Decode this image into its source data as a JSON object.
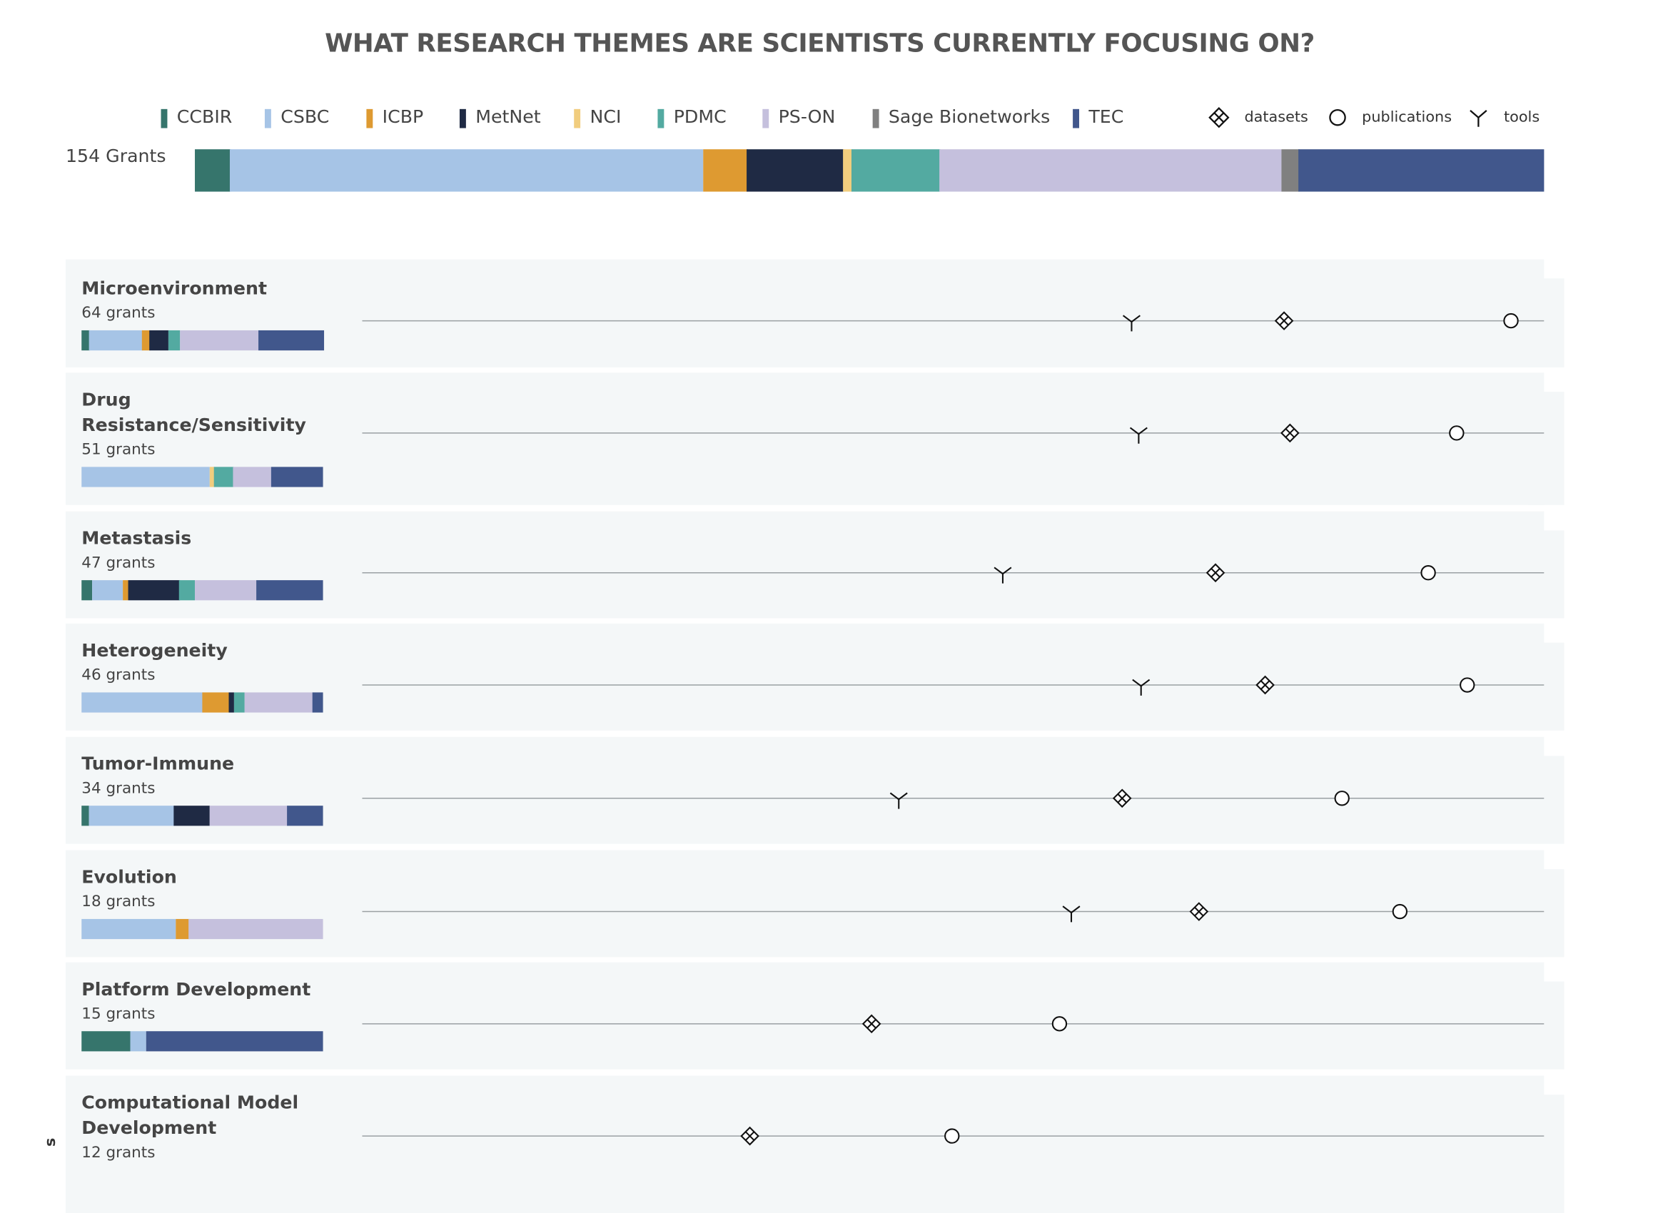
{
  "title": "WHAT RESEARCH THEMES ARE SCIENTISTS CURRENTLY FOCUSING ON?",
  "legend": [
    {
      "key": "CCBIR",
      "label": "CCBIR",
      "color": "#36756c"
    },
    {
      "key": "CSBC",
      "label": "CSBC",
      "color": "#a6c4e6"
    },
    {
      "key": "ICBP",
      "label": "ICBP",
      "color": "#de9a31"
    },
    {
      "key": "MetNet",
      "label": "MetNet",
      "color": "#1f2a44"
    },
    {
      "key": "NCI",
      "label": "NCI",
      "color": "#f1cd7e"
    },
    {
      "key": "PDMC",
      "label": "PDMC",
      "color": "#53aaa1"
    },
    {
      "key": "PS-ON",
      "label": "PS-ON",
      "color": "#c5c0dd"
    },
    {
      "key": "Sage Bionetworks",
      "label": "Sage Bionetworks",
      "color": "#808080"
    },
    {
      "key": "TEC",
      "label": "TEC",
      "color": "#41578c"
    }
  ],
  "marker_legend": [
    {
      "key": "datasets",
      "label": "datasets",
      "icon": "diamond-icon"
    },
    {
      "key": "publications",
      "label": "publications",
      "icon": "circle-icon"
    },
    {
      "key": "tools",
      "label": "tools",
      "icon": "tools-y-icon"
    }
  ],
  "chart_data": {
    "type": "bar",
    "total": {
      "label": "154 Grants",
      "value": 154,
      "shares": {
        "CCBIR": 4,
        "CSBC": 54,
        "ICBP": 5,
        "MetNet": 11,
        "NCI": 1,
        "PDMC": 10,
        "PS-ON": 39,
        "Sage Bionetworks": 2,
        "TEC": 28
      }
    },
    "marker_scale_note": "marker positions are relative levels on an unlabeled horizontal scale from 0 to 1",
    "themes": [
      {
        "name": "Microenvironment",
        "grants_label": "64 grants",
        "grants": 64,
        "shares": {
          "CCBIR": 2,
          "CSBC": 14,
          "ICBP": 2,
          "MetNet": 5,
          "PDMC": 3,
          "PS-ON": 21,
          "TEC": 17
        },
        "markers": {
          "tools": 0.651,
          "datasets": 0.78,
          "publications": 0.972
        }
      },
      {
        "name": "Drug Resistance/Sensitivity",
        "grants_label": "51 grants",
        "grants": 51,
        "shares": {
          "CSBC": 27,
          "NCI": 1,
          "PDMC": 4,
          "PS-ON": 8,
          "TEC": 11
        },
        "markers": {
          "tools": 0.657,
          "datasets": 0.785,
          "publications": 0.926
        }
      },
      {
        "name": "Metastasis",
        "grants_label": "47 grants",
        "grants": 47,
        "shares": {
          "CCBIR": 2,
          "CSBC": 6,
          "ICBP": 1,
          "MetNet": 10,
          "PDMC": 3,
          "PS-ON": 12,
          "TEC": 13
        },
        "markers": {
          "tools": 0.542,
          "datasets": 0.722,
          "publications": 0.902
        }
      },
      {
        "name": "Heterogeneity",
        "grants_label": "46 grants",
        "grants": 46,
        "shares": {
          "CSBC": 23,
          "ICBP": 5,
          "MetNet": 1,
          "PDMC": 2,
          "PS-ON": 13,
          "TEC": 2
        },
        "markers": {
          "tools": 0.659,
          "datasets": 0.764,
          "publications": 0.935
        }
      },
      {
        "name": "Tumor-Immune",
        "grants_label": "34 grants",
        "grants": 34,
        "shares": {
          "CCBIR": 1,
          "CSBC": 12,
          "MetNet": 5,
          "PS-ON": 11,
          "TEC": 5
        },
        "markers": {
          "tools": 0.454,
          "datasets": 0.643,
          "publications": 0.829
        }
      },
      {
        "name": "Evolution",
        "grants_label": "18 grants",
        "grants": 18,
        "shares": {
          "CSBC": 7,
          "ICBP": 1,
          "PS-ON": 10
        },
        "markers": {
          "tools": 0.6,
          "datasets": 0.708,
          "publications": 0.878
        }
      },
      {
        "name": "Platform Development",
        "grants_label": "15 grants",
        "grants": 15,
        "shares": {
          "CCBIR": 3,
          "CSBC": 1,
          "TEC": 11
        },
        "markers": {
          "datasets": 0.431,
          "publications": 0.59
        }
      },
      {
        "name": "Computational Model Development",
        "grants_label": "12 grants",
        "grants": 12,
        "shares": {},
        "markers": {
          "datasets": 0.328,
          "publications": 0.499
        }
      }
    ]
  },
  "side_label": "s"
}
